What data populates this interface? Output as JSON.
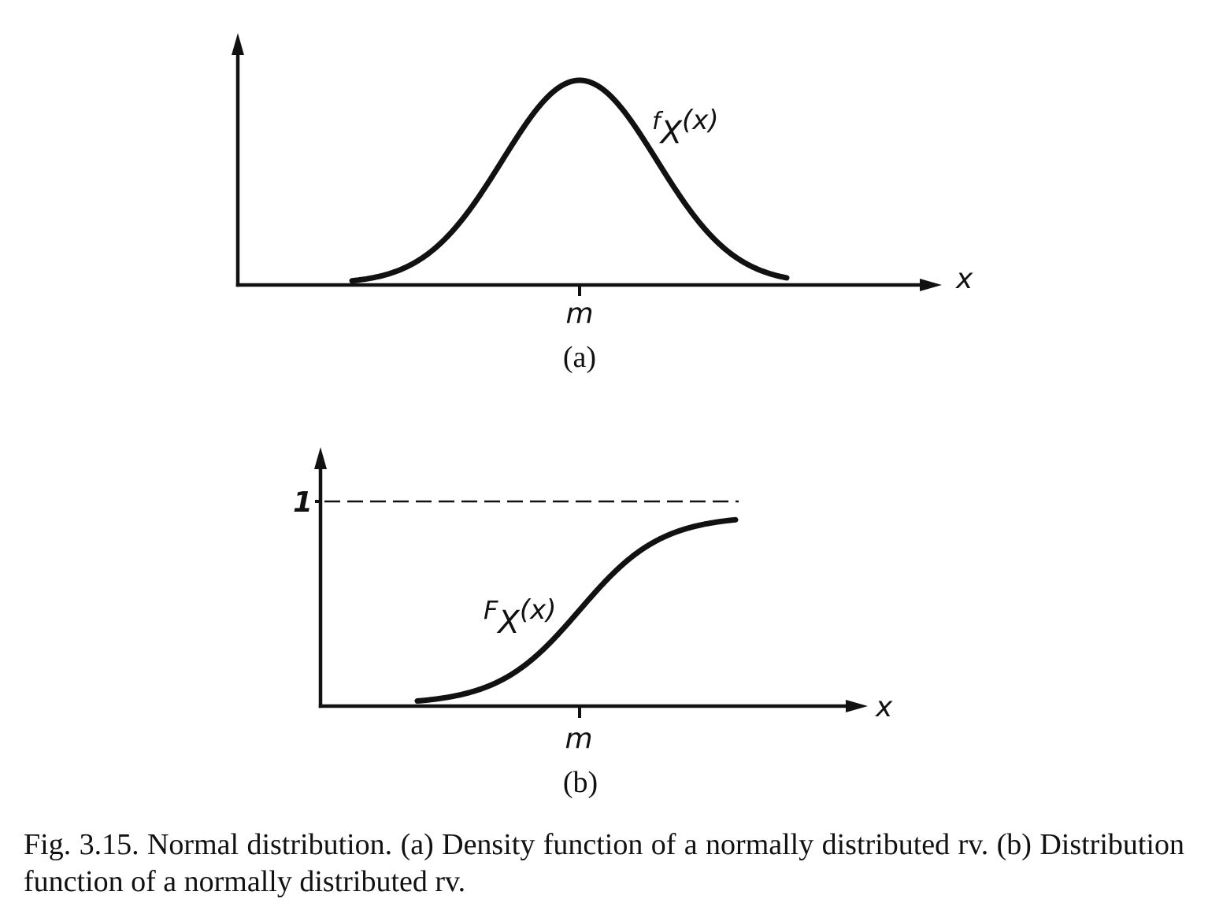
{
  "panels": [
    {
      "panel_label": "(a)",
      "curve_label": {
        "main": "f",
        "subscript": "X",
        "argument": "(x)"
      },
      "x_axis_label": "x",
      "tick_label": "m"
    },
    {
      "panel_label": "(b)",
      "curve_label": {
        "main": "F",
        "subscript": "X",
        "argument": "(x)"
      },
      "x_axis_label": "x",
      "tick_label": "m",
      "y_tick_label": "1"
    }
  ],
  "caption": {
    "lead": "Fig. 3.15.",
    "text": "Normal distribution. (a) Density function of a normally distributed rv. (b) Distribution function of a normally distributed rv."
  },
  "colors": {
    "ink": "#111111",
    "background": "#ffffff"
  }
}
